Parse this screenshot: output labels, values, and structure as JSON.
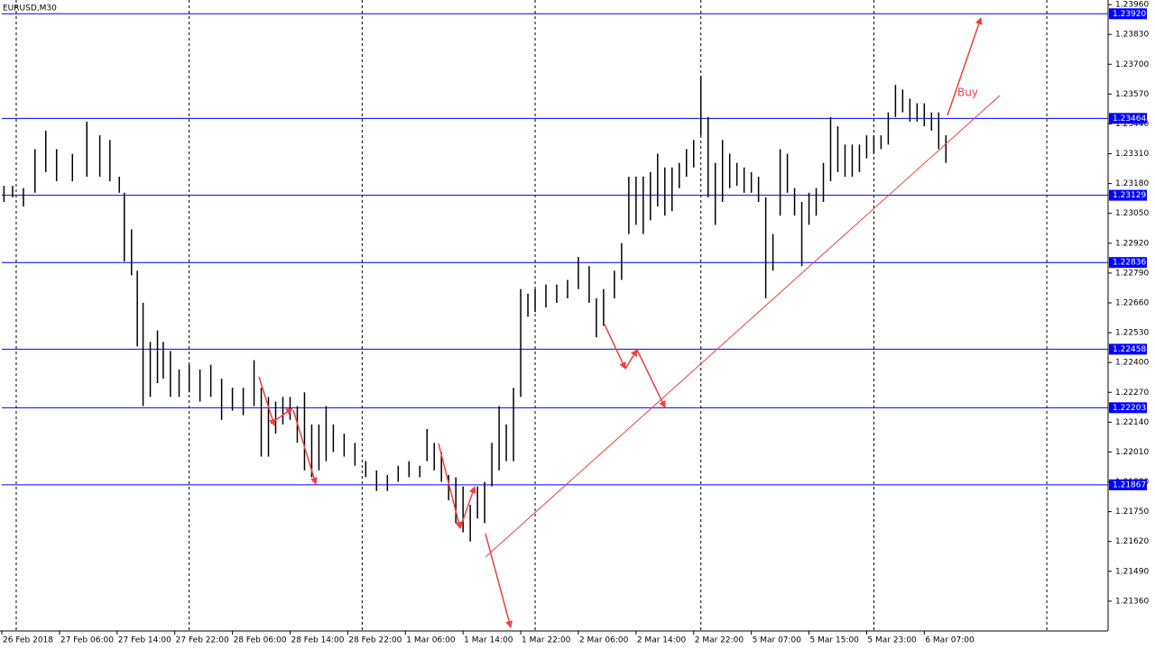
{
  "chart_data": {
    "type": "ohlc",
    "title": "EURUSD,M30",
    "x": [
      0.3,
      1.5,
      3,
      4.6,
      6.1,
      7.6,
      9.8,
      11.8,
      13.6,
      15,
      16.3,
      17,
      18,
      18.8,
      19.6,
      20.6,
      21.6,
      22.4,
      23.4,
      24.6,
      26,
      27.5,
      29,
      30.5,
      32,
      33.5,
      35,
      36,
      37,
      38,
      39,
      40,
      41,
      42,
      43,
      44,
      45,
      46,
      47.5,
      49,
      50.5,
      52,
      53.5,
      55,
      56.5,
      58,
      59,
      60,
      61,
      62,
      63,
      64,
      65,
      66,
      67,
      68,
      69,
      70,
      71,
      72,
      73,
      74,
      75.5,
      77,
      78.5,
      80,
      81.5,
      82.5,
      83.5,
      85,
      86,
      87,
      88,
      89,
      90,
      91,
      92,
      93,
      94,
      95,
      96,
      97,
      98,
      99,
      100,
      101,
      102,
      103,
      104,
      105,
      106,
      107,
      108,
      109,
      110,
      111,
      112,
      113,
      114,
      115,
      116,
      117,
      118,
      119,
      120,
      121,
      122,
      123,
      124,
      125,
      126,
      127,
      128,
      129,
      130,
      131
    ],
    "high": [
      1.2317,
      1.2317,
      1.2316,
      1.2333,
      1.2341,
      1.2333,
      1.2331,
      1.2345,
      1.2339,
      1.2337,
      1.2321,
      1.2314,
      1.2298,
      1.228,
      1.2266,
      1.2249,
      1.2254,
      1.2249,
      1.2245,
      1.2237,
      1.2239,
      1.2237,
      1.2239,
      1.2233,
      1.2229,
      1.2229,
      1.2241,
      1.2229,
      1.2225,
      1.2223,
      1.2225,
      1.2225,
      1.2221,
      1.2227,
      1.2213,
      1.2213,
      1.2221,
      1.2213,
      1.2209,
      1.2205,
      1.2197,
      1.2193,
      1.2191,
      1.2195,
      1.2197,
      1.2195,
      1.2211,
      1.2205,
      1.2201,
      1.2191,
      1.219,
      1.2186,
      1.2178,
      1.2186,
      1.2188,
      1.2205,
      1.2221,
      1.2213,
      1.2229,
      1.2272,
      1.227,
      1.2272,
      1.2274,
      1.2274,
      1.2276,
      1.2286,
      1.2282,
      1.2268,
      1.2272,
      1.228,
      1.2292,
      1.2321,
      1.2321,
      1.2321,
      1.2323,
      1.2331,
      1.2325,
      1.2325,
      1.2327,
      1.2333,
      1.2337,
      1.2365,
      1.2347,
      1.2327,
      1.2337,
      1.2331,
      1.2327,
      1.2325,
      1.2323,
      1.2321,
      1.2312,
      1.2296,
      1.2333,
      1.2331,
      1.2316,
      1.231,
      1.2314,
      1.2316,
      1.2327,
      1.2347,
      1.2343,
      1.2335,
      1.2335,
      1.2335,
      1.2339,
      1.2339,
      1.2339,
      1.2349,
      1.2361,
      1.2359,
      1.2355,
      1.2353,
      1.2353,
      1.2349,
      1.2349,
      1.2339
    ],
    "low": [
      1.231,
      1.2312,
      1.2308,
      1.2314,
      1.2323,
      1.2319,
      1.2319,
      1.2321,
      1.2321,
      1.2319,
      1.2314,
      1.2284,
      1.2278,
      1.2247,
      1.2221,
      1.2225,
      1.2231,
      1.2233,
      1.2225,
      1.2225,
      1.2227,
      1.2223,
      1.2225,
      1.2215,
      1.2219,
      1.2217,
      1.2221,
      1.2199,
      1.2199,
      1.2209,
      1.2213,
      1.2215,
      1.2205,
      1.2193,
      1.219,
      1.2193,
      1.2197,
      1.2201,
      1.2199,
      1.2195,
      1.219,
      1.2184,
      1.2184,
      1.2188,
      1.219,
      1.219,
      1.2197,
      1.2193,
      1.2188,
      1.218,
      1.217,
      1.2166,
      1.2162,
      1.2172,
      1.217,
      1.2186,
      1.2193,
      1.2197,
      1.2197,
      1.2225,
      1.226,
      1.2262,
      1.2264,
      1.2266,
      1.2268,
      1.2272,
      1.2266,
      1.2251,
      1.2256,
      1.2268,
      1.2276,
      1.2296,
      1.23,
      1.2296,
      1.2302,
      1.2308,
      1.2304,
      1.2306,
      1.2316,
      1.2321,
      1.2325,
      1.2339,
      1.2312,
      1.23,
      1.231,
      1.2316,
      1.2317,
      1.2314,
      1.2314,
      1.231,
      1.2268,
      1.228,
      1.2304,
      1.2314,
      1.2304,
      1.2282,
      1.23,
      1.2304,
      1.231,
      1.2319,
      1.2323,
      1.2321,
      1.2321,
      1.2323,
      1.2329,
      1.2331,
      1.2333,
      1.2335,
      1.2347,
      1.2349,
      1.2345,
      1.2345,
      1.2343,
      1.2341,
      1.2333,
      1.2327
    ],
    "color": "#000000",
    "xlim": [
      0,
      153.5
    ],
    "xticks": [
      {
        "value": 0,
        "label": "26 Feb 2018"
      },
      {
        "value": 8,
        "label": "27 Feb 06:00"
      },
      {
        "value": 16,
        "label": "27 Feb 14:00"
      },
      {
        "value": 24,
        "label": "27 Feb 22:00"
      },
      {
        "value": 32,
        "label": "28 Feb 06:00"
      },
      {
        "value": 40,
        "label": "28 Feb 14:00"
      },
      {
        "value": 48,
        "label": "28 Feb 22:00"
      },
      {
        "value": 56,
        "label": "1 Mar 06:00"
      },
      {
        "value": 64,
        "label": "1 Mar 14:00"
      },
      {
        "value": 72,
        "label": "1 Mar 22:00"
      },
      {
        "value": 80,
        "label": "2 Mar 06:00"
      },
      {
        "value": 88,
        "label": "2 Mar 14:00"
      },
      {
        "value": 96,
        "label": "2 Mar 22:00"
      },
      {
        "value": 104,
        "label": "5 Mar 07:00"
      },
      {
        "value": 112,
        "label": "5 Mar 15:00"
      },
      {
        "value": 120,
        "label": "5 Mar 23:00"
      },
      {
        "value": 128,
        "label": "6 Mar 07:00"
      }
    ],
    "separators": [
      2,
      26,
      50,
      74,
      97,
      121,
      145
    ],
    "ylim": [
      1.2123,
      1.2398
    ],
    "yticks": [
      {
        "value": 1.2396,
        "label": "1.23960"
      },
      {
        "value": 1.2383,
        "label": "1.23830"
      },
      {
        "value": 1.237,
        "label": "1.23700"
      },
      {
        "value": 1.2357,
        "label": "1.23570"
      },
      {
        "value": 1.2344,
        "label": "1.23440"
      },
      {
        "value": 1.2331,
        "label": "1.23310"
      },
      {
        "value": 1.2318,
        "label": "1.23180"
      },
      {
        "value": 1.2305,
        "label": "1.23050"
      },
      {
        "value": 1.2292,
        "label": "1.22920"
      },
      {
        "value": 1.2279,
        "label": "1.22790"
      },
      {
        "value": 1.2266,
        "label": "1.22660"
      },
      {
        "value": 1.2253,
        "label": "1.22530"
      },
      {
        "value": 1.224,
        "label": "1.22400"
      },
      {
        "value": 1.2227,
        "label": "1.22270"
      },
      {
        "value": 1.2214,
        "label": "1.22140"
      },
      {
        "value": 1.2201,
        "label": "1.22010"
      },
      {
        "value": 1.2188,
        "label": "1.21880"
      },
      {
        "value": 1.2175,
        "label": "1.21750"
      },
      {
        "value": 1.2162,
        "label": "1.21620"
      },
      {
        "value": 1.2149,
        "label": "1.21490"
      },
      {
        "value": 1.2136,
        "label": "1.21360"
      }
    ],
    "levels": [
      {
        "value": 1.2392,
        "label": "1.23920"
      },
      {
        "value": 1.23464,
        "label": "1.23464"
      },
      {
        "value": 1.23129,
        "label": "1.23129"
      },
      {
        "value": 1.22836,
        "label": "1.22836"
      },
      {
        "value": 1.22458,
        "label": "1.22458"
      },
      {
        "value": 1.22203,
        "label": "1.22203"
      },
      {
        "value": 1.21867,
        "label": "1.21867"
      }
    ],
    "level_color": "#0000ff",
    "annotation": "Buy"
  }
}
